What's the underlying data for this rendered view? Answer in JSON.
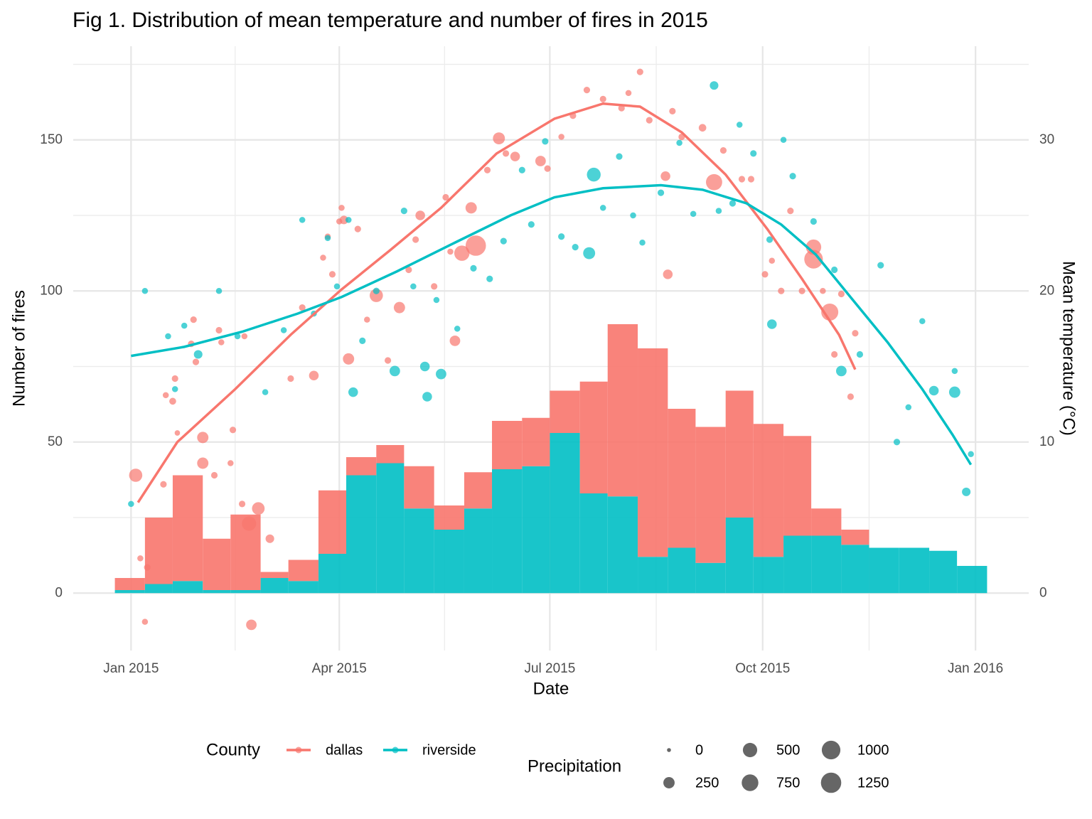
{
  "chart_data": [
    {
      "type": "histogram",
      "title": "Fig 1. Distribution of mean temperature and number of fires in 2015",
      "xlabel": "Date",
      "ylabel": "Number of fires",
      "y2label": "Mean temperature (°C)",
      "xlim": [
        "2014-12-07",
        "2016-01-24"
      ],
      "xticks": [
        {
          "value": "2015-01-01",
          "label": "Jan 2015"
        },
        {
          "value": "2015-04-01",
          "label": "Apr 2015"
        },
        {
          "value": "2015-07-01",
          "label": "Jul 2015"
        },
        {
          "value": "2015-10-01",
          "label": "Oct 2015"
        },
        {
          "value": "2016-01-01",
          "label": "Jan 2016"
        }
      ],
      "ylim": [
        -19,
        181
      ],
      "yticks": [
        0,
        50,
        100,
        150
      ],
      "y2lim": [
        -3.8,
        36.2
      ],
      "y2ticks": [
        0,
        10,
        20,
        30
      ],
      "grid": true,
      "stacked": true,
      "legend_title": "County",
      "size_legend": {
        "title": "Precipitation",
        "values": [
          0,
          250,
          500,
          750,
          1000,
          1250
        ]
      },
      "bins": [
        "2014-12-25",
        "2015-01-07",
        "2015-01-19",
        "2015-02-01",
        "2015-02-13",
        "2015-02-26",
        "2015-03-10",
        "2015-03-23",
        "2015-04-04",
        "2015-04-17",
        "2015-04-29",
        "2015-05-12",
        "2015-05-25",
        "2015-06-06",
        "2015-06-19",
        "2015-07-01",
        "2015-07-14",
        "2015-07-26",
        "2015-08-08",
        "2015-08-21",
        "2015-09-02",
        "2015-09-15",
        "2015-09-27",
        "2015-10-10",
        "2015-10-22",
        "2015-11-04",
        "2015-11-16",
        "2015-11-29",
        "2015-12-12",
        "2015-12-24",
        "2016-01-06"
      ],
      "series": [
        {
          "name": "riverside",
          "color": "#00BFC4",
          "values": [
            1,
            3,
            4,
            1,
            1,
            5,
            4,
            13,
            39,
            43,
            28,
            21,
            28,
            41,
            42,
            53,
            33,
            32,
            12,
            15,
            10,
            25,
            12,
            19,
            19,
            16,
            15,
            15,
            14,
            9
          ]
        },
        {
          "name": "dallas",
          "color": "#F8766D",
          "values": [
            4,
            22,
            35,
            17,
            25,
            2,
            7,
            21,
            6,
            6,
            14,
            8,
            12,
            16,
            16,
            14,
            37,
            57,
            69,
            46,
            45,
            42,
            44,
            33,
            9,
            5,
            0,
            0,
            0,
            0
          ]
        }
      ]
    },
    {
      "type": "scatter",
      "axis": "y2",
      "series": [
        {
          "name": "dallas",
          "color": "#F8766D",
          "x": [
            "2015-01-03",
            "2015-01-05",
            "2015-01-07",
            "2015-01-08",
            "2015-01-15",
            "2015-01-16",
            "2015-01-19",
            "2015-01-21",
            "2015-01-20",
            "2015-01-27",
            "2015-01-28",
            "2015-01-29",
            "2015-02-01",
            "2015-02-01",
            "2015-02-06",
            "2015-02-08",
            "2015-02-09",
            "2015-02-13",
            "2015-02-14",
            "2015-02-18",
            "2015-02-19",
            "2015-02-21",
            "2015-02-22",
            "2015-02-25",
            "2015-03-02",
            "2015-03-11",
            "2015-03-16",
            "2015-03-21",
            "2015-03-25",
            "2015-03-27",
            "2015-03-29",
            "2015-04-01",
            "2015-04-02",
            "2015-04-03",
            "2015-04-05",
            "2015-04-09",
            "2015-04-13",
            "2015-04-17",
            "2015-04-22",
            "2015-04-27",
            "2015-05-01",
            "2015-05-04",
            "2015-05-06",
            "2015-05-12",
            "2015-05-17",
            "2015-05-19",
            "2015-05-21",
            "2015-05-24",
            "2015-05-28",
            "2015-05-30",
            "2015-06-04",
            "2015-06-09",
            "2015-06-12",
            "2015-06-16",
            "2015-06-27",
            "2015-06-30",
            "2015-07-06",
            "2015-07-11",
            "2015-07-17",
            "2015-07-24",
            "2015-08-01",
            "2015-08-04",
            "2015-08-09",
            "2015-08-13",
            "2015-08-20",
            "2015-08-21",
            "2015-08-23",
            "2015-08-27",
            "2015-09-05",
            "2015-09-10",
            "2015-09-14",
            "2015-09-22",
            "2015-09-26",
            "2015-10-02",
            "2015-10-05",
            "2015-10-09",
            "2015-10-13",
            "2015-10-18",
            "2015-10-23",
            "2015-10-23",
            "2015-10-27",
            "2015-10-30",
            "2015-11-01",
            "2015-11-04",
            "2015-11-08",
            "2015-11-10"
          ],
          "values": [
            7.8,
            2.3,
            -1.9,
            1.7,
            7.2,
            13.1,
            12.7,
            10.6,
            14.2,
            16.5,
            18.1,
            15.3,
            8.6,
            10.3,
            7.8,
            17.4,
            16.6,
            8.6,
            10.8,
            5.9,
            17.0,
            4.6,
            -2.1,
            5.6,
            3.6,
            14.2,
            18.9,
            14.4,
            22.2,
            23.6,
            21.1,
            24.6,
            25.5,
            24.7,
            15.5,
            24.1,
            18.1,
            19.7,
            15.4,
            18.9,
            21.4,
            23.4,
            25.0,
            20.3,
            26.2,
            22.6,
            16.7,
            22.5,
            25.5,
            23.0,
            28.0,
            30.1,
            29.1,
            28.9,
            28.6,
            28.1,
            30.2,
            31.6,
            33.3,
            32.7,
            32.1,
            33.1,
            34.5,
            31.3,
            27.6,
            21.1,
            31.9,
            30.2,
            30.8,
            27.2,
            29.3,
            27.4,
            27.4,
            21.1,
            22.0,
            20.0,
            25.3,
            20.0,
            22.9,
            22.1,
            20.0,
            18.6,
            15.8,
            19.8,
            13.0,
            17.2
          ],
          "sizes": [
            400,
            20,
            20,
            30,
            30,
            20,
            40,
            10,
            30,
            30,
            30,
            30,
            250,
            250,
            30,
            30,
            20,
            20,
            30,
            30,
            20,
            500,
            200,
            350,
            100,
            30,
            30,
            150,
            20,
            20,
            30,
            20,
            20,
            100,
            250,
            30,
            20,
            400,
            30,
            250,
            30,
            30,
            150,
            30,
            30,
            20,
            200,
            600,
            250,
            1250,
            30,
            300,
            30,
            150,
            200,
            30,
            20,
            30,
            30,
            30,
            30,
            20,
            30,
            30,
            150,
            150,
            30,
            30,
            60,
            700,
            30,
            30,
            30,
            30,
            20,
            30,
            30,
            30,
            600,
            1000,
            20,
            800,
            30,
            30,
            30,
            30
          ]
        },
        {
          "name": "riverside",
          "color": "#00BFC4",
          "x": [
            "2015-01-01",
            "2015-01-07",
            "2015-01-17",
            "2015-01-20",
            "2015-01-24",
            "2015-01-30",
            "2015-02-08",
            "2015-02-16",
            "2015-02-28",
            "2015-03-08",
            "2015-03-16",
            "2015-03-21",
            "2015-03-27",
            "2015-03-31",
            "2015-04-05",
            "2015-04-07",
            "2015-04-11",
            "2015-04-17",
            "2015-04-25",
            "2015-04-29",
            "2015-05-03",
            "2015-05-08",
            "2015-05-09",
            "2015-05-13",
            "2015-05-15",
            "2015-05-22",
            "2015-05-29",
            "2015-06-05",
            "2015-06-11",
            "2015-06-19",
            "2015-06-23",
            "2015-06-29",
            "2015-07-06",
            "2015-07-12",
            "2015-07-18",
            "2015-07-20",
            "2015-07-24",
            "2015-07-31",
            "2015-08-06",
            "2015-08-10",
            "2015-08-18",
            "2015-08-26",
            "2015-09-01",
            "2015-09-10",
            "2015-09-12",
            "2015-09-18",
            "2015-09-21",
            "2015-09-27",
            "2015-10-04",
            "2015-10-05",
            "2015-10-10",
            "2015-10-14",
            "2015-10-23",
            "2015-11-01",
            "2015-11-04",
            "2015-11-12",
            "2015-11-21",
            "2015-11-28",
            "2015-12-03",
            "2015-12-09",
            "2015-12-14",
            "2015-12-23",
            "2015-12-23",
            "2015-12-28",
            "2015-12-30"
          ],
          "values": [
            5.9,
            20.0,
            17.0,
            13.5,
            17.7,
            15.8,
            20.0,
            17.0,
            13.3,
            17.4,
            24.7,
            18.5,
            23.5,
            20.3,
            24.7,
            13.3,
            16.7,
            20.0,
            14.7,
            25.3,
            20.3,
            15.0,
            13.0,
            19.4,
            14.5,
            17.5,
            21.5,
            20.8,
            23.3,
            28.0,
            24.4,
            29.9,
            23.6,
            22.9,
            22.5,
            27.7,
            25.5,
            28.9,
            25.0,
            23.2,
            26.5,
            29.8,
            25.1,
            33.6,
            25.3,
            25.8,
            31.0,
            29.1,
            23.4,
            17.8,
            30.0,
            27.6,
            24.6,
            21.4,
            14.7,
            15.8,
            21.7,
            10.0,
            12.3,
            18.0,
            13.4,
            14.7,
            13.3,
            6.7,
            9.2
          ],
          "sizes": [
            20,
            20,
            20,
            20,
            20,
            100,
            20,
            20,
            20,
            20,
            20,
            20,
            20,
            20,
            20,
            150,
            30,
            30,
            200,
            30,
            20,
            150,
            150,
            20,
            200,
            20,
            30,
            30,
            30,
            30,
            30,
            30,
            30,
            30,
            300,
            450,
            20,
            30,
            20,
            20,
            30,
            20,
            20,
            100,
            20,
            30,
            20,
            30,
            30,
            150,
            20,
            30,
            30,
            30,
            200,
            30,
            30,
            30,
            20,
            20,
            150,
            20,
            250,
            100,
            20
          ]
        }
      ]
    },
    {
      "type": "line",
      "axis": "y2",
      "series": [
        {
          "name": "dallas",
          "color": "#F8766D",
          "x": [
            "2015-01-04",
            "2015-01-21",
            "2015-02-15",
            "2015-03-11",
            "2015-04-02",
            "2015-04-23",
            "2015-05-15",
            "2015-06-08",
            "2015-07-03",
            "2015-07-24",
            "2015-08-09",
            "2015-08-27",
            "2015-09-15",
            "2015-10-03",
            "2015-10-18",
            "2015-11-03",
            "2015-11-10"
          ],
          "values": [
            6.0,
            10.0,
            13.5,
            17.1,
            20.1,
            22.7,
            25.5,
            29.1,
            31.4,
            32.4,
            32.2,
            30.5,
            27.7,
            24.1,
            20.8,
            17.1,
            14.8
          ]
        },
        {
          "name": "riverside",
          "color": "#00BFC4",
          "x": [
            "2015-01-01",
            "2015-01-24",
            "2015-02-18",
            "2015-03-14",
            "2015-04-02",
            "2015-04-26",
            "2015-05-21",
            "2015-06-14",
            "2015-07-03",
            "2015-07-24",
            "2015-08-18",
            "2015-09-05",
            "2015-09-24",
            "2015-10-09",
            "2015-10-24",
            "2015-11-09",
            "2015-11-24",
            "2015-12-09",
            "2015-12-22",
            "2015-12-30"
          ],
          "values": [
            15.7,
            16.3,
            17.3,
            18.5,
            19.6,
            21.3,
            23.2,
            25.0,
            26.2,
            26.8,
            27.0,
            26.7,
            25.8,
            24.4,
            22.4,
            19.4,
            16.6,
            13.5,
            10.5,
            8.5
          ]
        }
      ]
    }
  ]
}
